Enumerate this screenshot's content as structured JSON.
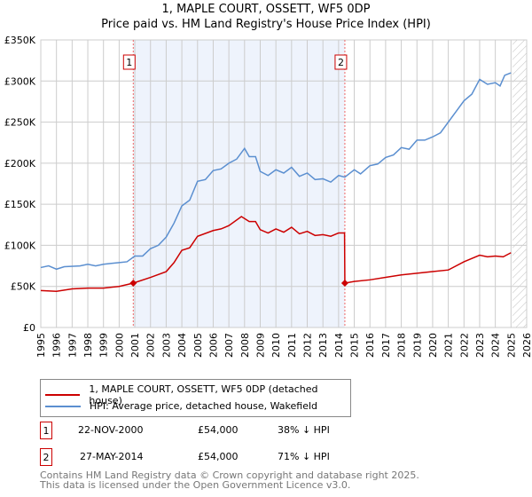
{
  "chart_data": {
    "type": "line",
    "title": "1, MAPLE COURT, OSSETT, WF5 0DP",
    "subtitle": "Price paid vs. HM Land Registry's House Price Index (HPI)",
    "xlim": [
      1995,
      2026
    ],
    "ylim": [
      0,
      350000
    ],
    "yticks": [
      {
        "v": 0,
        "label": "£0"
      },
      {
        "v": 50000,
        "label": "£50K"
      },
      {
        "v": 100000,
        "label": "£100K"
      },
      {
        "v": 150000,
        "label": "£150K"
      },
      {
        "v": 200000,
        "label": "£200K"
      },
      {
        "v": 250000,
        "label": "£250K"
      },
      {
        "v": 300000,
        "label": "£300K"
      },
      {
        "v": 350000,
        "label": "£350K"
      }
    ],
    "xticks": [
      "1995",
      "1996",
      "1997",
      "1998",
      "1999",
      "2000",
      "2001",
      "2002",
      "2003",
      "2004",
      "2005",
      "2006",
      "2007",
      "2008",
      "2009",
      "2010",
      "2011",
      "2012",
      "2013",
      "2014",
      "2015",
      "2016",
      "2017",
      "2018",
      "2019",
      "2020",
      "2021",
      "2022",
      "2023",
      "2024",
      "2025",
      "2026"
    ],
    "series": [
      {
        "name": "1, MAPLE COURT, OSSETT, WF5 0DP (detached house)",
        "color": "#cc0000",
        "x": [
          1995,
          1996,
          1997,
          1998,
          1999,
          2000,
          2000.9,
          2002,
          2003,
          2003.5,
          2004,
          2004.5,
          2005,
          2006,
          2006.5,
          2007,
          2007.8,
          2008.3,
          2008.7,
          2009,
          2009.5,
          2010,
          2010.5,
          2011,
          2011.5,
          2012,
          2012.5,
          2013,
          2013.5,
          2014,
          2014.38,
          2014.4,
          2015,
          2016,
          2017,
          2018,
          2019,
          2020,
          2021,
          2022,
          2023,
          2023.5,
          2024,
          2024.5,
          2025
        ],
        "y": [
          45000,
          44000,
          47000,
          48000,
          48000,
          50000,
          54000,
          61000,
          68000,
          79000,
          94000,
          97000,
          111000,
          118000,
          120000,
          124000,
          135000,
          129000,
          129000,
          119000,
          115000,
          120000,
          116000,
          122000,
          114000,
          117000,
          112000,
          113000,
          111000,
          115000,
          115000,
          54000,
          56000,
          58000,
          61000,
          64000,
          66000,
          68000,
          70000,
          80000,
          88000,
          86000,
          87000,
          86000,
          91000
        ]
      },
      {
        "name": "HPI: Average price, detached house, Wakefield",
        "color": "#5b8fd0",
        "x": [
          1995,
          1995.5,
          1996,
          1996.5,
          1997.5,
          1998,
          1998.5,
          1999,
          2000,
          2000.5,
          2001,
          2001.5,
          2002,
          2002.5,
          2003,
          2003.5,
          2004,
          2004.5,
          2005,
          2005.5,
          2006,
          2006.5,
          2007,
          2007.5,
          2008,
          2008.3,
          2008.7,
          2009,
          2009.5,
          2010,
          2010.5,
          2011,
          2011.5,
          2012,
          2012.5,
          2013,
          2013.5,
          2014,
          2014.4,
          2015,
          2015.4,
          2016,
          2016.5,
          2017,
          2017.5,
          2018,
          2018.5,
          2019,
          2019.5,
          2020,
          2020.5,
          2021,
          2021.5,
          2022,
          2022.5,
          2023,
          2023.5,
          2024,
          2024.3,
          2024.6,
          2025
        ],
        "y": [
          73000,
          75000,
          71000,
          74000,
          75000,
          77000,
          75000,
          77000,
          79000,
          80000,
          87000,
          87000,
          96000,
          100000,
          110000,
          127000,
          148000,
          155000,
          178000,
          180000,
          191000,
          193000,
          200000,
          205000,
          218000,
          208000,
          208000,
          190000,
          185000,
          192000,
          188000,
          195000,
          184000,
          188000,
          180000,
          181000,
          177000,
          185000,
          183000,
          192000,
          187000,
          197000,
          199000,
          207000,
          210000,
          219000,
          217000,
          228000,
          228000,
          232000,
          237000,
          250000,
          263000,
          276000,
          284000,
          302000,
          296000,
          298000,
          294000,
          307000,
          310000
        ]
      }
    ],
    "transactions": [
      {
        "num": "1",
        "date": "22-NOV-2000",
        "x": 2000.9,
        "price": "£54,000",
        "value": 54000,
        "hpi": "38% ↓ HPI"
      },
      {
        "num": "2",
        "date": "27-MAY-2014",
        "x": 2014.4,
        "price": "£54,000",
        "value": 54000,
        "hpi": "71% ↓ HPI"
      }
    ],
    "shaded_range": [
      2000.9,
      2014.4
    ],
    "forecast_from": 2025.1
  },
  "footer": {
    "line1": "Contains HM Land Registry data © Crown copyright and database right 2025.",
    "line2": "This data is licensed under the Open Government Licence v3.0."
  }
}
